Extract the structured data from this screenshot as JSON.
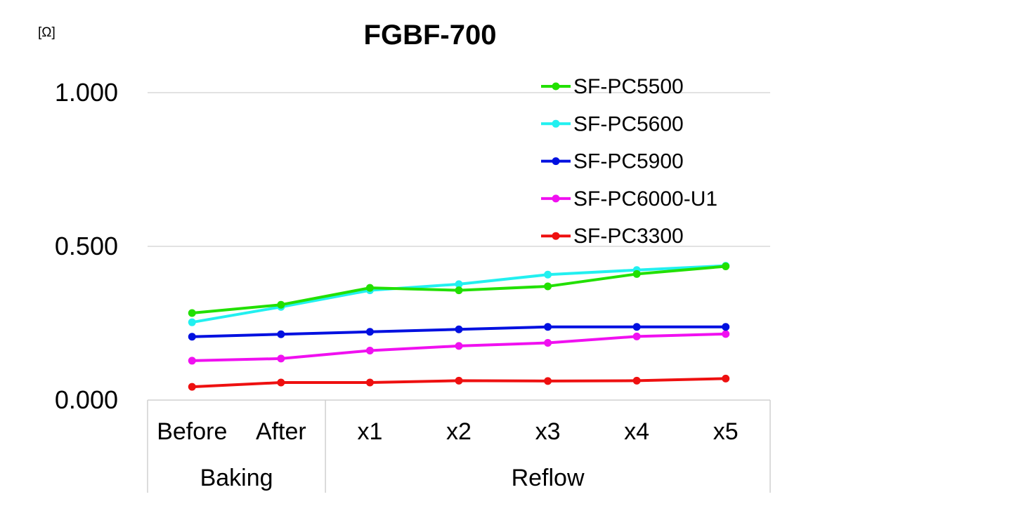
{
  "chart_data": {
    "type": "line",
    "title": "FGBF-700",
    "unit_label": "[Ω]",
    "xlabel": "",
    "ylabel": "",
    "ylim": [
      0,
      1
    ],
    "yticks": [
      "0.000",
      "0.500",
      "1.000"
    ],
    "grid": true,
    "legend_position": "top-right",
    "categories": [
      "Before",
      "After",
      "x1",
      "x2",
      "x3",
      "x4",
      "x5"
    ],
    "groups": [
      {
        "label": "Baking",
        "count": 2
      },
      {
        "label": "Reflow",
        "count": 5
      }
    ],
    "series": [
      {
        "name": "SF-PC5500",
        "color": "#22e000",
        "values": [
          0.283,
          0.31,
          0.365,
          0.357,
          0.37,
          0.41,
          0.435
        ]
      },
      {
        "name": "SF-PC5600",
        "color": "#22f0f0",
        "values": [
          0.253,
          0.303,
          0.357,
          0.377,
          0.408,
          0.423,
          0.437
        ]
      },
      {
        "name": "SF-PC5900",
        "color": "#0010e0",
        "values": [
          0.206,
          0.214,
          0.222,
          0.23,
          0.238,
          0.238,
          0.238
        ]
      },
      {
        "name": "SF-PC6000-U1",
        "color": "#f010f0",
        "values": [
          0.128,
          0.135,
          0.161,
          0.176,
          0.186,
          0.207,
          0.215
        ]
      },
      {
        "name": "SF-PC3300",
        "color": "#ee1010",
        "values": [
          0.043,
          0.057,
          0.057,
          0.063,
          0.062,
          0.063,
          0.07
        ]
      }
    ]
  }
}
